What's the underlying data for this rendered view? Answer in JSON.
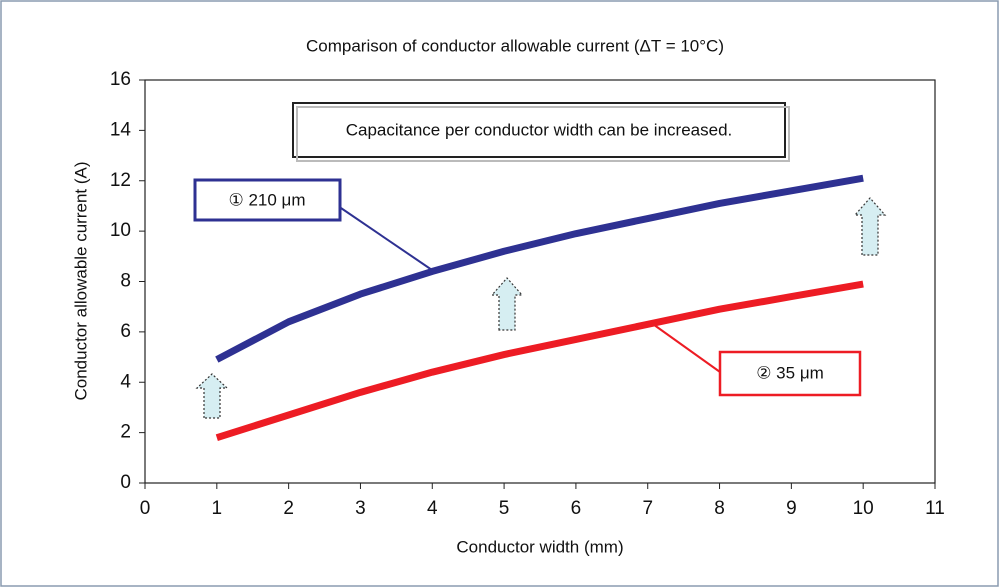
{
  "chart_data": {
    "type": "line",
    "title": "Comparison of conductor allowable current (ΔT = 10°C)",
    "x_label": "Conductor width (mm)",
    "y_label": "Conductor allowable current (A)",
    "annotation": "Capacitance per conductor width can be increased.",
    "x": [
      1,
      2,
      3,
      4,
      5,
      6,
      7,
      8,
      9,
      10
    ],
    "series": [
      {
        "name": "① 210 μm",
        "color": "#2e3192",
        "values": [
          4.9,
          6.4,
          7.5,
          8.4,
          9.2,
          9.9,
          10.5,
          11.1,
          11.6,
          12.1
        ]
      },
      {
        "name": "② 35 μm",
        "color": "#ed1c24",
        "values": [
          1.8,
          2.7,
          3.6,
          4.4,
          5.1,
          5.7,
          6.3,
          6.9,
          7.4,
          7.9
        ]
      }
    ],
    "xlim": [
      0,
      11
    ],
    "xticks": [
      0,
      1,
      2,
      3,
      4,
      5,
      6,
      7,
      8,
      9,
      10,
      11
    ],
    "ylim": [
      0,
      16
    ],
    "yticks": [
      0,
      2,
      4,
      6,
      8,
      10,
      12,
      14,
      16
    ],
    "grid": false
  }
}
